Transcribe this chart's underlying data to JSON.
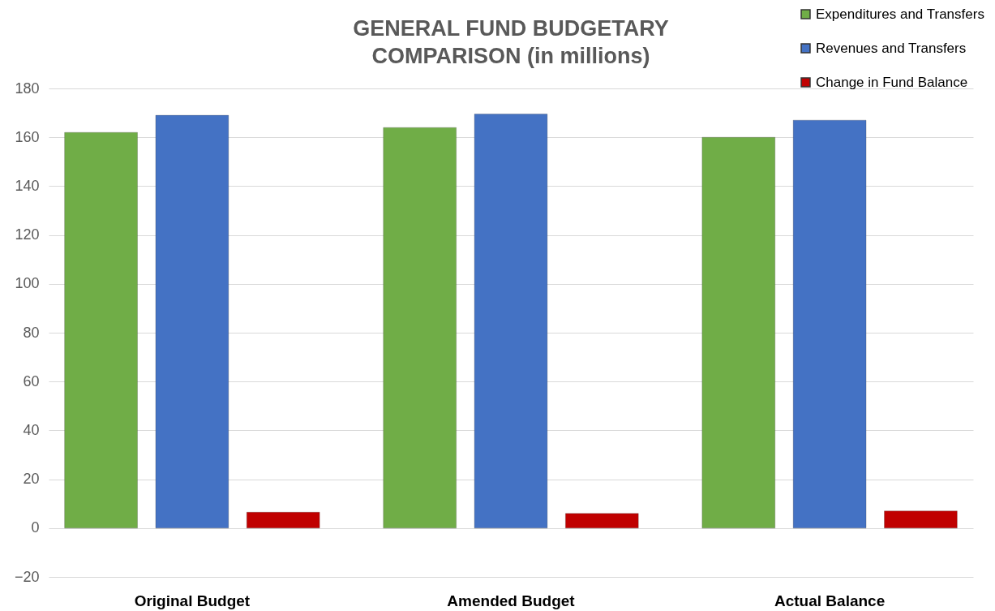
{
  "chart_data": {
    "type": "bar",
    "title": "GENERAL FUND BUDGETARY COMPARISON (in millions)",
    "categories": [
      "Original Budget",
      "Amended Budget",
      "Actual Balance"
    ],
    "series": [
      {
        "name": "Expenditures and Transfers",
        "color": "#70ad47",
        "values": [
          162,
          164,
          160
        ]
      },
      {
        "name": "Revenues and Transfers",
        "color": "#4472c4",
        "values": [
          169,
          169.5,
          167
        ]
      },
      {
        "name": "Change in Fund Balance",
        "color": "#c00000",
        "values": [
          6.5,
          6,
          7
        ]
      }
    ],
    "ylim": [
      -20,
      180
    ],
    "yticks": [
      -20,
      0,
      20,
      40,
      60,
      80,
      100,
      120,
      140,
      160,
      180
    ],
    "grid": "y",
    "legend": "top right"
  }
}
